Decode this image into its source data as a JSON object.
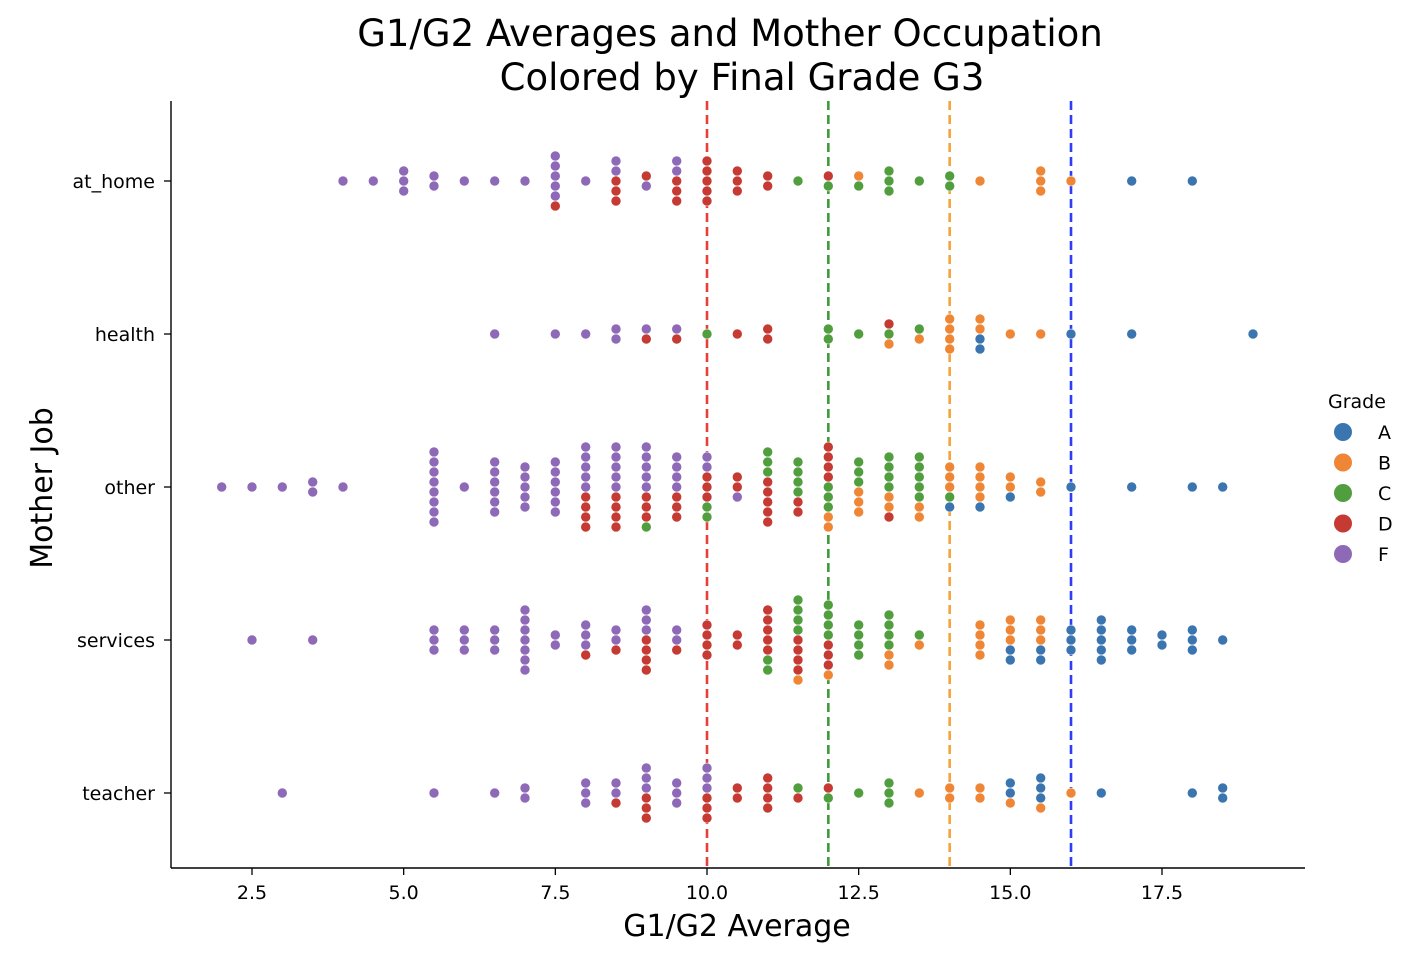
{
  "chart_data": {
    "type": "scatter",
    "subtype": "swarm",
    "title_line1": "G1/G2 Averages and Mother Occupation",
    "title_line2": "Colored by Final Grade G3",
    "xlabel": "G1/G2 Average",
    "ylabel": "Mother Job",
    "xlim": [
      1.3,
      19.8
    ],
    "x_ticks": [
      2.5,
      5.0,
      7.5,
      10.0,
      12.5,
      15.0,
      17.5
    ],
    "x_tick_labels": [
      "2.5",
      "5.0",
      "7.5",
      "10.0",
      "12.5",
      "15.0",
      "17.5"
    ],
    "categories": [
      "at_home",
      "health",
      "other",
      "services",
      "teacher"
    ],
    "legend": {
      "title": "Grade",
      "position": "right",
      "entries": [
        "A",
        "B",
        "C",
        "D",
        "F"
      ]
    },
    "grade_colors": {
      "A": "#3b75af",
      "B": "#ef8636",
      "C": "#519e3e",
      "D": "#c53a32",
      "F": "#8d69b8"
    },
    "reference_lines": [
      {
        "x": 10,
        "color": "#e5403a"
      },
      {
        "x": 12,
        "color": "#3f9a3a"
      },
      {
        "x": 14,
        "color": "#f5a33b"
      },
      {
        "x": 16,
        "color": "#2f3df5"
      }
    ],
    "groups": [
      {
        "category": "at_home",
        "points": [
          [
            4,
            "F",
            1
          ],
          [
            4.5,
            "F",
            1
          ],
          [
            5,
            "F",
            3
          ],
          [
            5.5,
            "F",
            2
          ],
          [
            6,
            "F",
            1
          ],
          [
            6.5,
            "F",
            1
          ],
          [
            7,
            "F",
            1
          ],
          [
            7.5,
            "F",
            5
          ],
          [
            7.5,
            "D",
            1
          ],
          [
            8,
            "F",
            1
          ],
          [
            8.5,
            "F",
            2
          ],
          [
            8.5,
            "D",
            3
          ],
          [
            9,
            "D",
            1
          ],
          [
            9,
            "F",
            1
          ],
          [
            9.5,
            "F",
            2
          ],
          [
            9.5,
            "D",
            3
          ],
          [
            10,
            "D",
            5
          ],
          [
            10.5,
            "D",
            3
          ],
          [
            11,
            "D",
            2
          ],
          [
            11.5,
            "C",
            1
          ],
          [
            12,
            "D",
            1
          ],
          [
            12,
            "C",
            1
          ],
          [
            12.5,
            "B",
            1
          ],
          [
            12.5,
            "C",
            1
          ],
          [
            13,
            "C",
            3
          ],
          [
            13.5,
            "C",
            1
          ],
          [
            14,
            "C",
            2
          ],
          [
            14.5,
            "B",
            1
          ],
          [
            15.5,
            "B",
            3
          ],
          [
            16,
            "B",
            1
          ],
          [
            17,
            "A",
            1
          ],
          [
            18,
            "A",
            1
          ]
        ]
      },
      {
        "category": "health",
        "points": [
          [
            6.5,
            "F",
            1
          ],
          [
            7.5,
            "F",
            1
          ],
          [
            8,
            "F",
            1
          ],
          [
            8.5,
            "F",
            2
          ],
          [
            9,
            "F",
            1
          ],
          [
            9,
            "D",
            1
          ],
          [
            9.5,
            "F",
            1
          ],
          [
            9.5,
            "D",
            1
          ],
          [
            10,
            "C",
            1
          ],
          [
            10.5,
            "D",
            1
          ],
          [
            11,
            "D",
            2
          ],
          [
            12,
            "C",
            2
          ],
          [
            12.5,
            "C",
            1
          ],
          [
            13,
            "D",
            1
          ],
          [
            13,
            "C",
            1
          ],
          [
            13,
            "B",
            1
          ],
          [
            13.5,
            "C",
            1
          ],
          [
            13.5,
            "B",
            1
          ],
          [
            14,
            "B",
            4
          ],
          [
            14.5,
            "B",
            2
          ],
          [
            14.5,
            "A",
            2
          ],
          [
            15,
            "B",
            1
          ],
          [
            15.5,
            "B",
            1
          ],
          [
            16,
            "A",
            1
          ],
          [
            17,
            "A",
            1
          ],
          [
            19,
            "A",
            1
          ]
        ]
      },
      {
        "category": "other",
        "points": [
          [
            2,
            "F",
            1
          ],
          [
            2.5,
            "F",
            1
          ],
          [
            3,
            "F",
            1
          ],
          [
            3.5,
            "F",
            2
          ],
          [
            4,
            "F",
            1
          ],
          [
            5.5,
            "F",
            8
          ],
          [
            6,
            "F",
            1
          ],
          [
            6.5,
            "F",
            6
          ],
          [
            7,
            "F",
            5
          ],
          [
            7.5,
            "F",
            6
          ],
          [
            8,
            "F",
            5
          ],
          [
            8,
            "D",
            4
          ],
          [
            8.5,
            "F",
            5
          ],
          [
            8.5,
            "D",
            4
          ],
          [
            9,
            "F",
            5
          ],
          [
            9,
            "D",
            3
          ],
          [
            9,
            "C",
            1
          ],
          [
            9.5,
            "F",
            4
          ],
          [
            9.5,
            "D",
            3
          ],
          [
            10,
            "F",
            2
          ],
          [
            10,
            "D",
            3
          ],
          [
            10,
            "C",
            2
          ],
          [
            10.5,
            "D",
            2
          ],
          [
            10.5,
            "F",
            1
          ],
          [
            11,
            "C",
            3
          ],
          [
            11,
            "D",
            5
          ],
          [
            11.5,
            "C",
            4
          ],
          [
            11.5,
            "D",
            2
          ],
          [
            12,
            "D",
            4
          ],
          [
            12,
            "C",
            3
          ],
          [
            12,
            "B",
            2
          ],
          [
            12.5,
            "C",
            3
          ],
          [
            12.5,
            "B",
            3
          ],
          [
            13,
            "C",
            4
          ],
          [
            13,
            "B",
            2
          ],
          [
            13,
            "D",
            1
          ],
          [
            13.5,
            "C",
            5
          ],
          [
            13.5,
            "B",
            2
          ],
          [
            14,
            "B",
            3
          ],
          [
            14,
            "C",
            1
          ],
          [
            14,
            "A",
            1
          ],
          [
            14.5,
            "B",
            4
          ],
          [
            14.5,
            "A",
            1
          ],
          [
            15,
            "B",
            2
          ],
          [
            15,
            "A",
            1
          ],
          [
            15.5,
            "B",
            2
          ],
          [
            16,
            "A",
            1
          ],
          [
            17,
            "A",
            1
          ],
          [
            18,
            "A",
            1
          ],
          [
            18.5,
            "A",
            1
          ]
        ]
      },
      {
        "category": "services",
        "points": [
          [
            2.5,
            "F",
            1
          ],
          [
            3.5,
            "F",
            1
          ],
          [
            5.5,
            "F",
            3
          ],
          [
            6,
            "F",
            3
          ],
          [
            6.5,
            "F",
            3
          ],
          [
            7,
            "F",
            7
          ],
          [
            7.5,
            "F",
            2
          ],
          [
            8,
            "F",
            3
          ],
          [
            8,
            "D",
            1
          ],
          [
            8.5,
            "F",
            2
          ],
          [
            8.5,
            "D",
            1
          ],
          [
            9,
            "F",
            3
          ],
          [
            9,
            "D",
            4
          ],
          [
            9.5,
            "F",
            2
          ],
          [
            9.5,
            "D",
            1
          ],
          [
            10,
            "D",
            4
          ],
          [
            10.5,
            "D",
            2
          ],
          [
            11,
            "D",
            5
          ],
          [
            11,
            "C",
            2
          ],
          [
            11.5,
            "C",
            4
          ],
          [
            11.5,
            "D",
            4
          ],
          [
            11.5,
            "B",
            1
          ],
          [
            12,
            "C",
            4
          ],
          [
            12,
            "D",
            3
          ],
          [
            12,
            "B",
            1
          ],
          [
            12.5,
            "C",
            4
          ],
          [
            13,
            "C",
            4
          ],
          [
            13,
            "B",
            2
          ],
          [
            13.5,
            "C",
            1
          ],
          [
            13.5,
            "B",
            1
          ],
          [
            14.5,
            "B",
            4
          ],
          [
            15,
            "B",
            3
          ],
          [
            15,
            "A",
            2
          ],
          [
            15.5,
            "B",
            3
          ],
          [
            15.5,
            "A",
            2
          ],
          [
            16,
            "A",
            3
          ],
          [
            16.5,
            "A",
            5
          ],
          [
            17,
            "A",
            3
          ],
          [
            17.5,
            "A",
            2
          ],
          [
            18,
            "A",
            3
          ],
          [
            18.5,
            "A",
            1
          ]
        ]
      },
      {
        "category": "teacher",
        "points": [
          [
            3,
            "F",
            1
          ],
          [
            5.5,
            "F",
            1
          ],
          [
            6.5,
            "F",
            1
          ],
          [
            7,
            "F",
            2
          ],
          [
            8,
            "F",
            3
          ],
          [
            8.5,
            "F",
            2
          ],
          [
            8.5,
            "D",
            1
          ],
          [
            9,
            "F",
            3
          ],
          [
            9,
            "D",
            3
          ],
          [
            9.5,
            "F",
            3
          ],
          [
            10,
            "F",
            3
          ],
          [
            10,
            "D",
            3
          ],
          [
            10.5,
            "D",
            2
          ],
          [
            11,
            "D",
            4
          ],
          [
            11.5,
            "C",
            1
          ],
          [
            11.5,
            "D",
            1
          ],
          [
            12,
            "D",
            1
          ],
          [
            12,
            "C",
            1
          ],
          [
            12.5,
            "C",
            1
          ],
          [
            13,
            "C",
            3
          ],
          [
            13.5,
            "B",
            1
          ],
          [
            14,
            "B",
            2
          ],
          [
            14.5,
            "B",
            2
          ],
          [
            15,
            "A",
            2
          ],
          [
            15,
            "B",
            1
          ],
          [
            15.5,
            "A",
            3
          ],
          [
            15.5,
            "B",
            1
          ],
          [
            16,
            "B",
            1
          ],
          [
            16.5,
            "A",
            1
          ],
          [
            18,
            "A",
            1
          ],
          [
            18.5,
            "A",
            2
          ]
        ]
      }
    ]
  }
}
